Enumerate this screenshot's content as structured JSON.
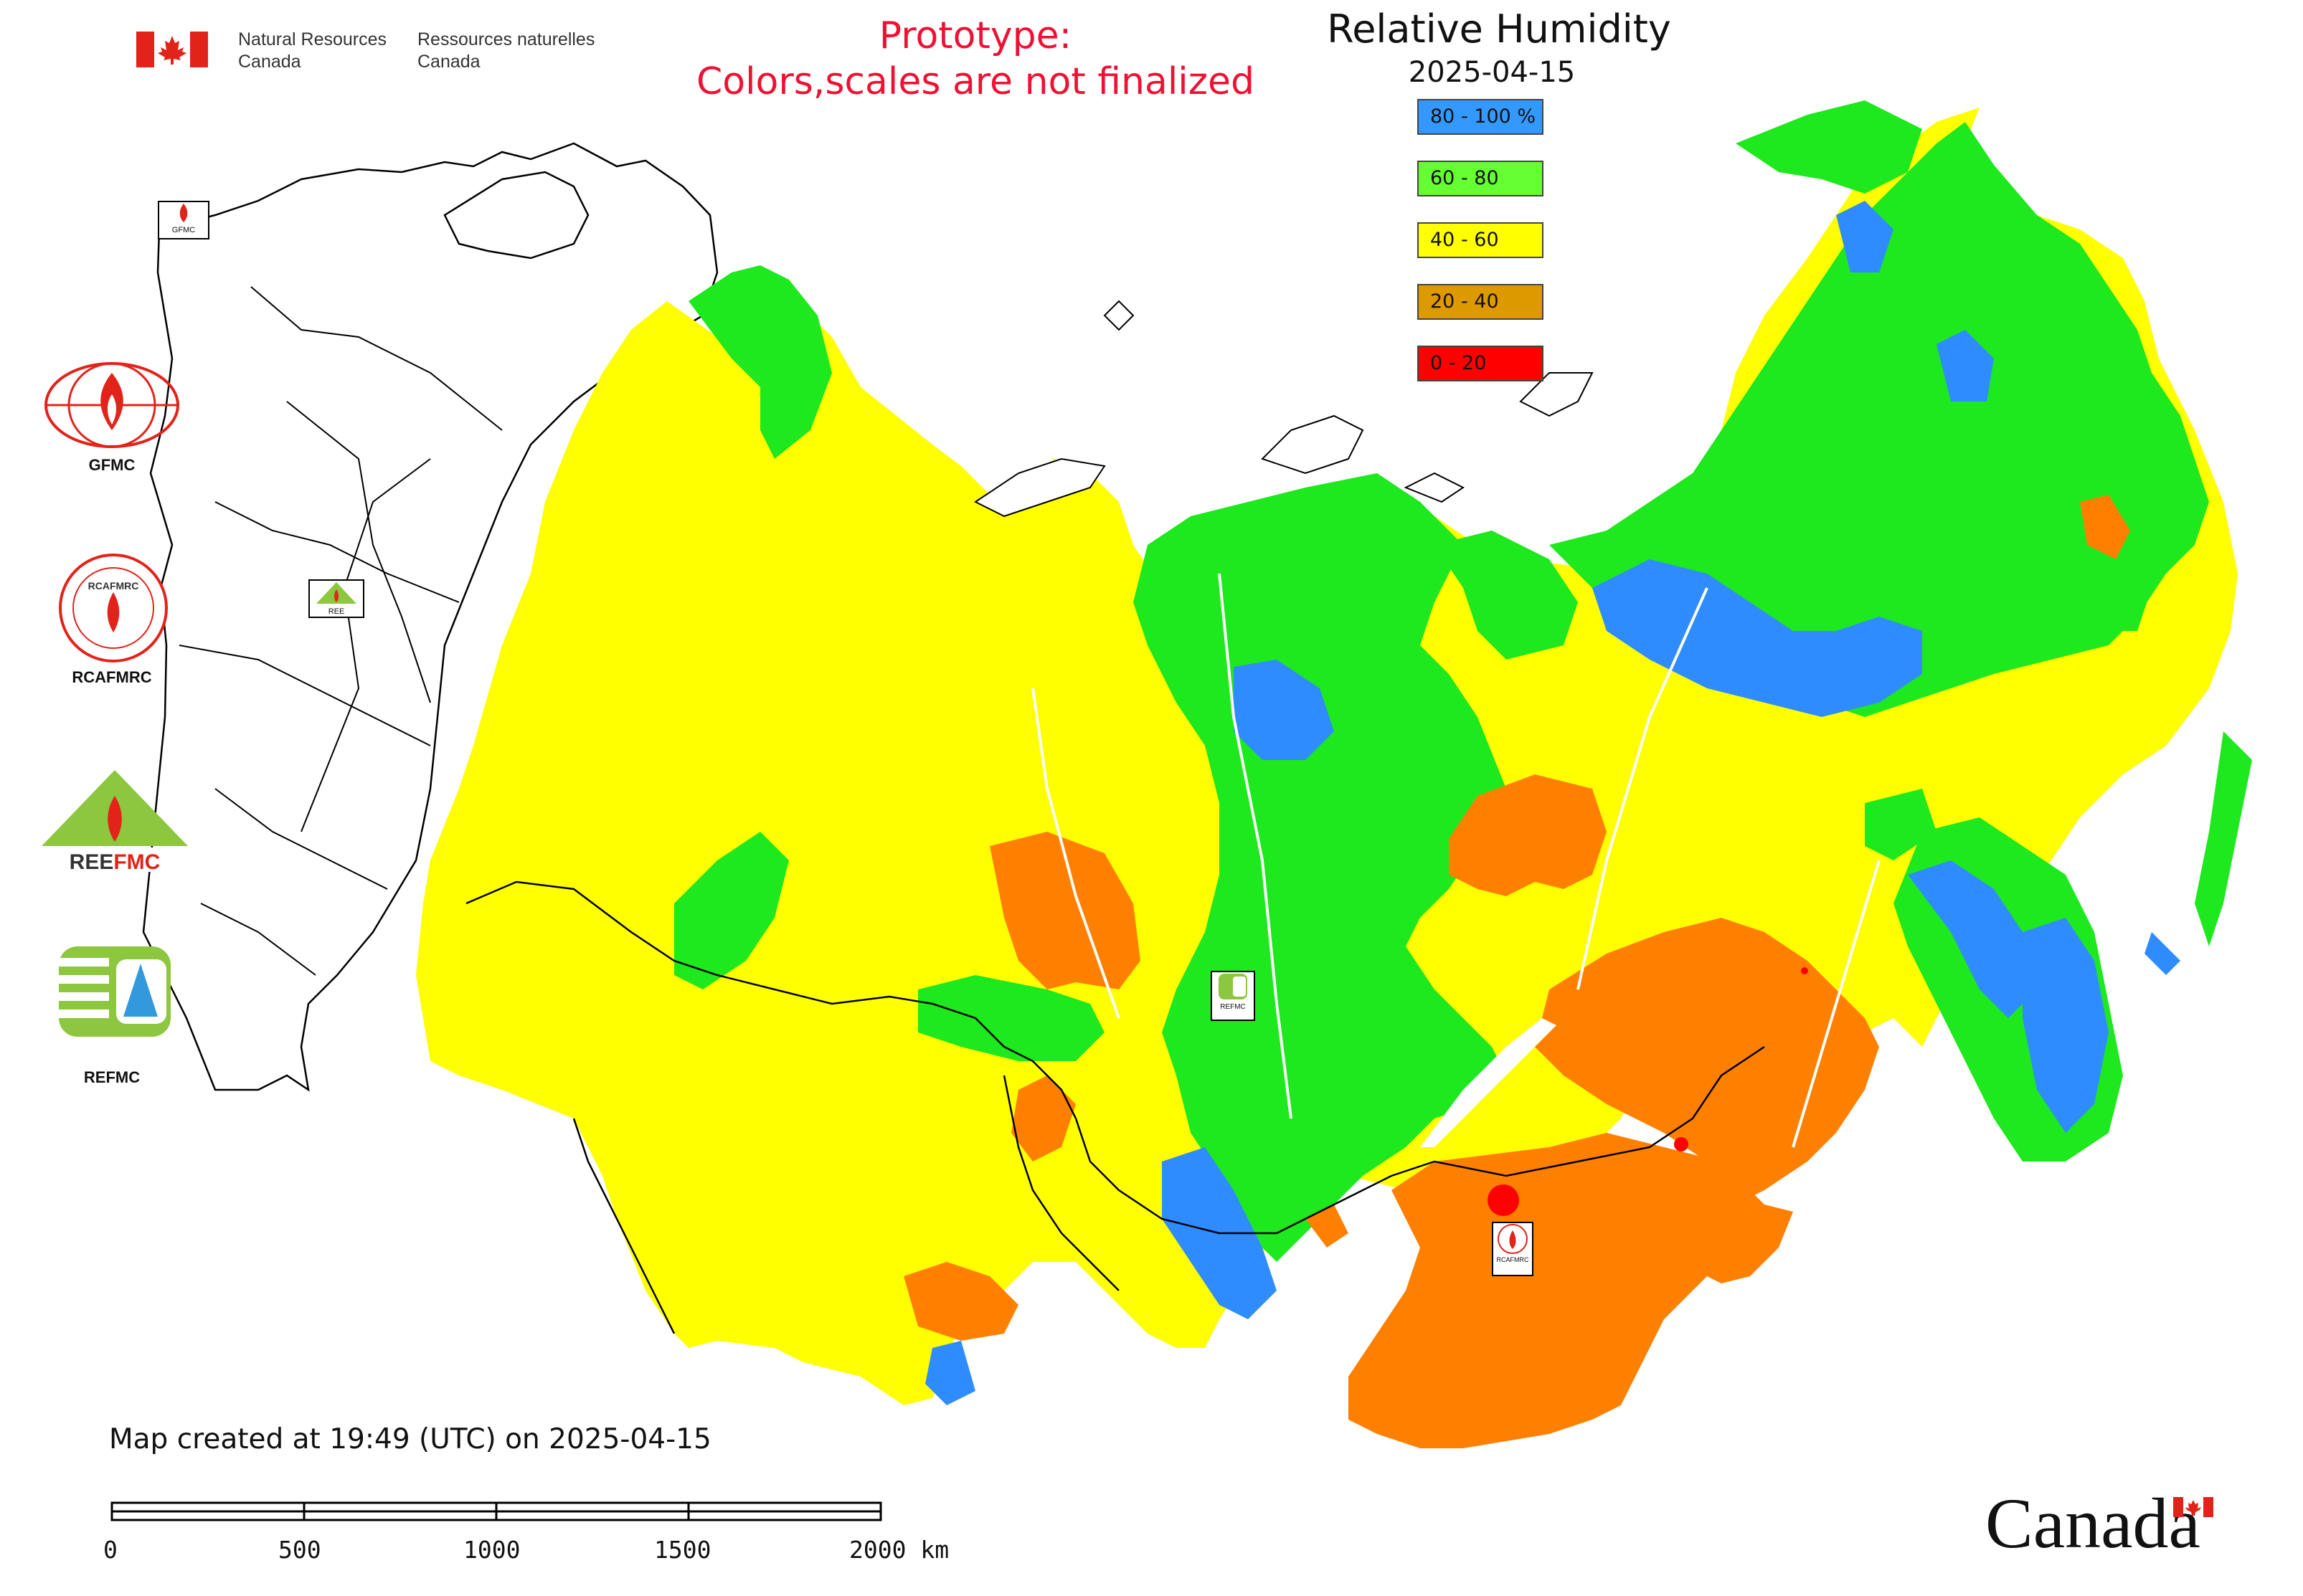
{
  "header": {
    "agency_en_line1": "Natural Resources",
    "agency_en_line2": "Canada",
    "agency_fr_line1": "Ressources naturelles",
    "agency_fr_line2": "Canada",
    "prototype_line1": "Prototype:",
    "prototype_line2": "Colors,scales are not finalized"
  },
  "map": {
    "title": "Relative Humidity",
    "date": "2025-04-15",
    "legend": [
      {
        "label": "80 - 100 %",
        "color": "#3399ff"
      },
      {
        "label": "60 - 80",
        "color": "#66ff33"
      },
      {
        "label": "40 - 60",
        "color": "#ffff00"
      },
      {
        "label": "20 - 40",
        "color": "#dd9900"
      },
      {
        "label": "0 - 20",
        "color": "#ff0000"
      }
    ],
    "colors": {
      "high": "#2f8cff",
      "moist": "#1ee81e",
      "mid": "#ffff00",
      "dry": "#ff8000",
      "very_dry": "#ff0000",
      "border": "#000000"
    }
  },
  "logos": {
    "gfmc": "GFMC",
    "rcafmrc": "RCAFMRC",
    "reefmc": "REEFMC",
    "refmc": "REFMC",
    "rcafmrc_badge": "RCAFMRC",
    "reefmc_badge": "REE",
    "refmc_badge": "REFMC",
    "gfmc_badge": "GFMC"
  },
  "footer": {
    "created": "Map created at 19:49 (UTC) on 2025-04-15",
    "scale_ticks": [
      "0",
      "500",
      "1000",
      "1500",
      "2000 km"
    ],
    "wordmark": "Canada"
  }
}
